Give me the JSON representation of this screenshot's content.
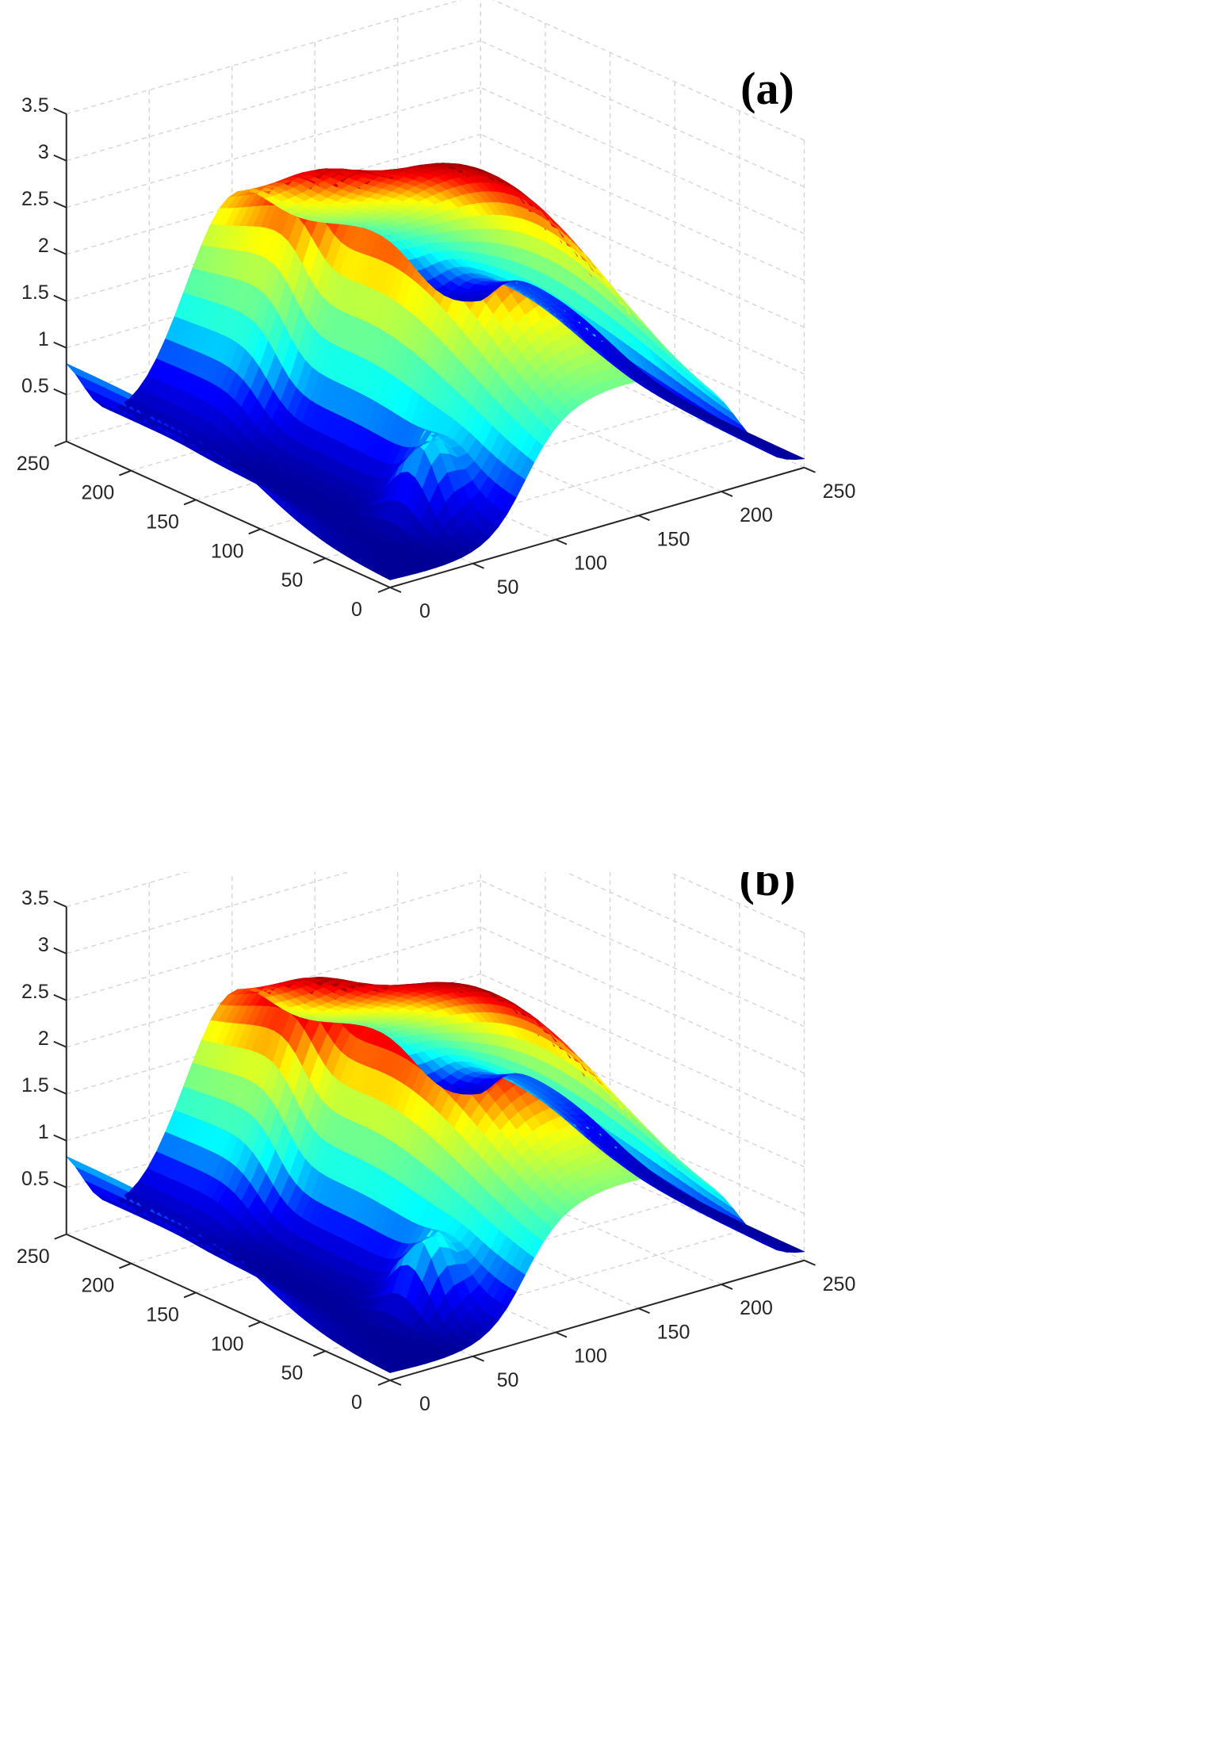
{
  "chart_data": [
    {
      "type": "surface",
      "panel_label": "(a)",
      "title": "",
      "xlabel": "",
      "ylabel": "",
      "zlabel": "",
      "xlim": [
        0,
        250
      ],
      "ylim": [
        0,
        250
      ],
      "zlim": [
        0,
        3.5
      ],
      "x_ticks": [
        "0",
        "50",
        "100",
        "150",
        "200",
        "250"
      ],
      "y_ticks": [
        "0",
        "50",
        "100",
        "150",
        "200",
        "250"
      ],
      "z_ticks": [
        "0.5",
        "1",
        "1.5",
        "2",
        "2.5",
        "3",
        "3.5"
      ],
      "grid": true,
      "colormap": "jet",
      "colormap_stops": [
        "#00008f",
        "#0000ff",
        "#00ffff",
        "#7fff7f",
        "#ffff00",
        "#ff0000",
        "#7f0000"
      ],
      "surface_peak_z": 2.95,
      "surface_min_z": 0.05
    },
    {
      "type": "surface",
      "panel_label": "(b)",
      "title": "",
      "xlabel": "",
      "ylabel": "",
      "zlabel": "",
      "xlim": [
        0,
        250
      ],
      "ylim": [
        0,
        250
      ],
      "zlim": [
        0,
        3.5
      ],
      "x_ticks": [
        "0",
        "50",
        "100",
        "150",
        "200",
        "250"
      ],
      "y_ticks": [
        "0",
        "50",
        "100",
        "150",
        "200",
        "250"
      ],
      "z_ticks": [
        "0.5",
        "1",
        "1.5",
        "2",
        "2.5",
        "3",
        "3.5"
      ],
      "grid": true,
      "colormap": "jet",
      "colormap_stops": [
        "#00008f",
        "#0000ff",
        "#00ffff",
        "#7fff7f",
        "#ffff00",
        "#ff0000",
        "#7f0000"
      ],
      "surface_peak_z": 2.65,
      "surface_min_z": 0.05
    }
  ]
}
